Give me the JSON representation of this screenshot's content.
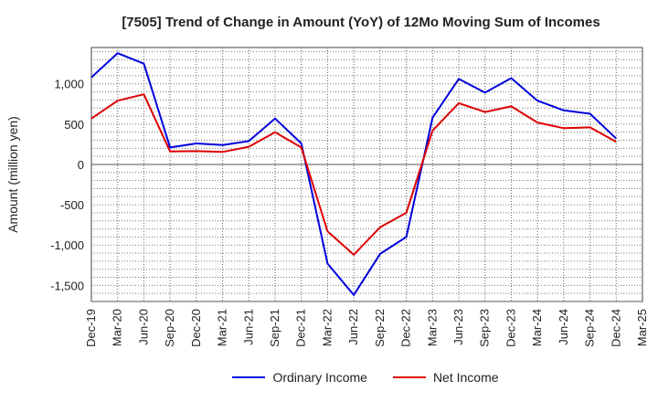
{
  "chart_data": {
    "type": "line",
    "title": "[7505]  Trend of Change in Amount (YoY) of 12Mo Moving Sum of Incomes",
    "xlabel": "",
    "ylabel": "Amount (million yen)",
    "ylim": [
      -1700,
      1450
    ],
    "yticks": [
      1000,
      500,
      0,
      -500,
      -1000,
      -1500
    ],
    "ytick_labels": [
      "1,000",
      "500",
      "0",
      "-500",
      "-1,000",
      "-1,500"
    ],
    "categories": [
      "Dec-19",
      "Mar-20",
      "Jun-20",
      "Sep-20",
      "Dec-20",
      "Mar-21",
      "Jun-21",
      "Sep-21",
      "Dec-21",
      "Mar-22",
      "Jun-22",
      "Sep-22",
      "Dec-22",
      "Mar-23",
      "Jun-23",
      "Sep-23",
      "Dec-23",
      "Mar-24",
      "Jun-24",
      "Sep-24",
      "Dec-24",
      "Mar-25"
    ],
    "grid": true,
    "legend_position": "bottom",
    "series": [
      {
        "name": "Ordinary Income",
        "color": "#0000dd",
        "values": [
          1080,
          1380,
          1250,
          210,
          260,
          240,
          290,
          570,
          260,
          -1230,
          -1620,
          -1110,
          -900,
          580,
          1060,
          890,
          1070,
          790,
          670,
          630,
          320,
          null
        ]
      },
      {
        "name": "Net Income",
        "color": "#dd0000",
        "values": [
          570,
          790,
          870,
          160,
          165,
          155,
          220,
          400,
          210,
          -830,
          -1120,
          -780,
          -600,
          420,
          760,
          650,
          720,
          520,
          450,
          460,
          280,
          null
        ]
      }
    ]
  }
}
